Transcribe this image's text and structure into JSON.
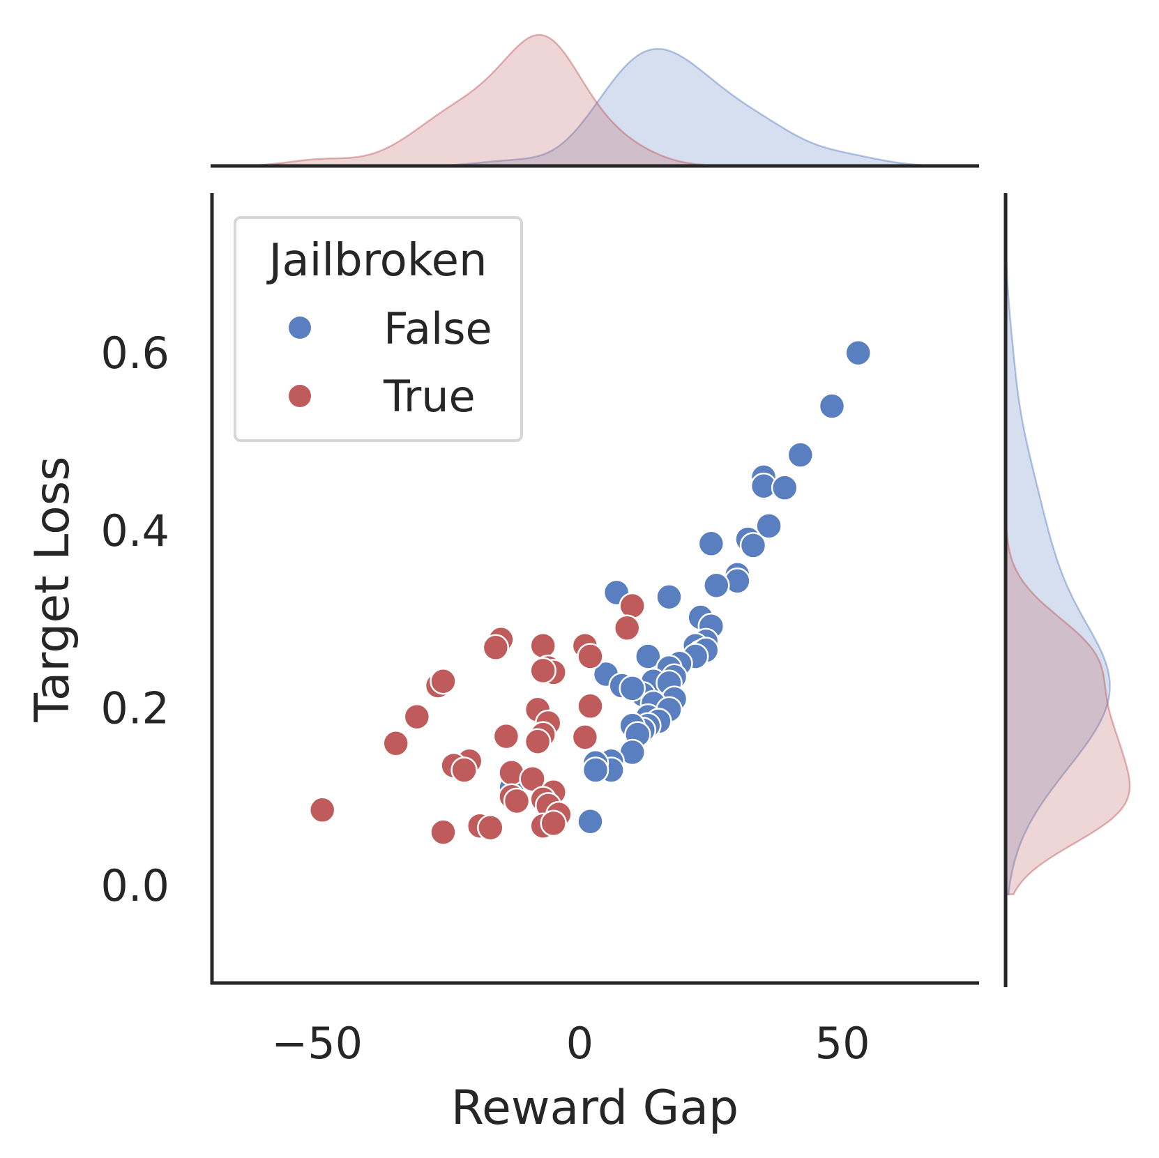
{
  "chart_data": {
    "type": "scatter",
    "xlabel": "Reward Gap",
    "ylabel": "Target Loss",
    "xlim": [
      -70,
      76
    ],
    "ylim": [
      -0.11,
      0.78
    ],
    "x_ticks": [
      -50,
      0,
      50
    ],
    "x_tick_labels": [
      "−50",
      "0",
      "50"
    ],
    "y_ticks": [
      0.0,
      0.2,
      0.4,
      0.6
    ],
    "y_tick_labels": [
      "0.0",
      "0.2",
      "0.4",
      "0.6"
    ],
    "grid": false,
    "legend": {
      "title": "Jailbroken",
      "placement": "top-left"
    },
    "marginals": {
      "top": "kde of Reward Gap by Jailbroken",
      "right": "kde of Target Loss by Jailbroken"
    },
    "series": [
      {
        "name": "False",
        "color": "#5a7fc0",
        "points": [
          [
            53,
            0.6
          ],
          [
            48,
            0.54
          ],
          [
            42,
            0.485
          ],
          [
            35,
            0.46
          ],
          [
            35,
            0.45
          ],
          [
            39,
            0.448
          ],
          [
            36,
            0.405
          ],
          [
            32,
            0.39
          ],
          [
            33,
            0.383
          ],
          [
            25,
            0.385
          ],
          [
            30,
            0.35
          ],
          [
            30,
            0.343
          ],
          [
            26,
            0.338
          ],
          [
            7,
            0.33
          ],
          [
            17,
            0.325
          ],
          [
            23,
            0.302
          ],
          [
            25,
            0.292
          ],
          [
            24,
            0.275
          ],
          [
            22,
            0.27
          ],
          [
            23,
            0.262
          ],
          [
            24,
            0.265
          ],
          [
            22,
            0.258
          ],
          [
            13,
            0.258
          ],
          [
            19,
            0.25
          ],
          [
            17,
            0.245
          ],
          [
            18,
            0.235
          ],
          [
            5,
            0.238
          ],
          [
            14,
            0.23
          ],
          [
            17,
            0.228
          ],
          [
            8,
            0.225
          ],
          [
            12,
            0.215
          ],
          [
            10,
            0.222
          ],
          [
            18,
            0.21
          ],
          [
            14,
            0.205
          ],
          [
            17,
            0.198
          ],
          [
            13,
            0.19
          ],
          [
            15,
            0.185
          ],
          [
            13,
            0.18
          ],
          [
            12,
            0.175
          ],
          [
            10,
            0.18
          ],
          [
            11,
            0.17
          ],
          [
            10,
            0.15
          ],
          [
            6,
            0.14
          ],
          [
            6,
            0.13
          ],
          [
            3,
            0.138
          ],
          [
            3,
            0.13
          ],
          [
            -13,
            0.11
          ],
          [
            2,
            0.072
          ]
        ]
      },
      {
        "name": "True",
        "color": "#bf5b5b",
        "points": [
          [
            10,
            0.315
          ],
          [
            9,
            0.29
          ],
          [
            -15,
            0.277
          ],
          [
            -16,
            0.268
          ],
          [
            -7,
            0.27
          ],
          [
            1,
            0.27
          ],
          [
            2,
            0.258
          ],
          [
            -6,
            0.245
          ],
          [
            -5,
            0.24
          ],
          [
            -7,
            0.242
          ],
          [
            -27,
            0.225
          ],
          [
            -26,
            0.23
          ],
          [
            -8,
            0.198
          ],
          [
            2,
            0.202
          ],
          [
            -31,
            0.19
          ],
          [
            -6,
            0.183
          ],
          [
            -7,
            0.17
          ],
          [
            -8,
            0.162
          ],
          [
            -14,
            0.168
          ],
          [
            1,
            0.167
          ],
          [
            -35,
            0.16
          ],
          [
            -21,
            0.14
          ],
          [
            -24,
            0.135
          ],
          [
            -22,
            0.13
          ],
          [
            -13,
            0.127
          ],
          [
            -9,
            0.12
          ],
          [
            -5,
            0.105
          ],
          [
            -13,
            0.1
          ],
          [
            -12,
            0.095
          ],
          [
            -7,
            0.097
          ],
          [
            -6,
            0.09
          ],
          [
            -49,
            0.085
          ],
          [
            -4,
            0.08
          ],
          [
            -19,
            0.067
          ],
          [
            -17,
            0.065
          ],
          [
            -26,
            0.06
          ],
          [
            -7,
            0.067
          ],
          [
            -5,
            0.07
          ]
        ]
      }
    ]
  }
}
